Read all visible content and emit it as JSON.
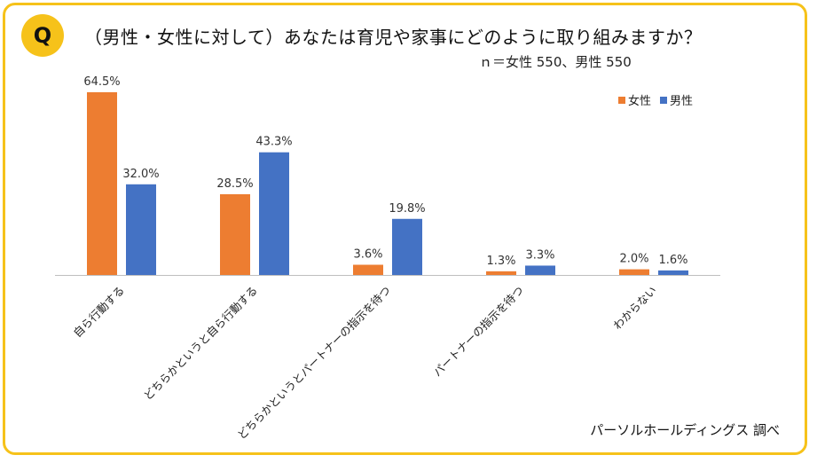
{
  "badge": "Q",
  "title": "（男性・女性に対して）あなたは育児や家事にどのように取り組みますか？",
  "sample_note": "ｎ＝女性 550、男性 550",
  "source": "パーソルホールディングス 調べ",
  "colors": {
    "frame": "#f6c21a",
    "female": "#ed7d31",
    "male": "#4472c4",
    "axis": "#bfbfbf"
  },
  "chart_data": {
    "type": "bar",
    "title": "（男性・女性に対して）あなたは育児や家事にどのように取り組みますか？",
    "categories": [
      "自ら行動する",
      "どちらかというと自ら行動する",
      "どちらかというとパートナーの指示を待つ",
      "パートナーの指示を待つ",
      "わからない"
    ],
    "series": [
      {
        "name": "女性",
        "color": "#ed7d31",
        "values": [
          64.5,
          28.5,
          3.6,
          1.3,
          2.0
        ]
      },
      {
        "name": "男性",
        "color": "#4472c4",
        "values": [
          32.0,
          43.3,
          19.8,
          3.3,
          1.6
        ]
      }
    ],
    "value_suffix": "%",
    "ylim": [
      0,
      64.5
    ],
    "grid": false,
    "legend_position": "top-right",
    "xlabel": "",
    "ylabel": ""
  }
}
